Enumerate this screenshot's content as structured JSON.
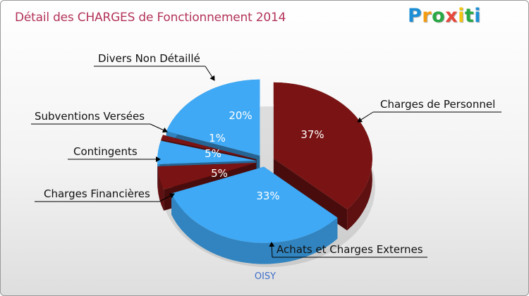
{
  "chart_data": {
    "type": "pie",
    "title": "Détail des CHARGES de Fonctionnement 2014",
    "categories": [
      "Charges de Personnel",
      "Achats et Charges Externes",
      "Charges Financières",
      "Contingents",
      "Subventions Versées",
      "Divers Non Détaillé"
    ],
    "values": [
      37,
      33,
      5,
      5,
      1,
      20
    ],
    "value_labels": [
      "37%",
      "33%",
      "5%",
      "5%",
      "1%",
      "20%"
    ],
    "xlabel": "OISY",
    "colors": [
      "#7a1414",
      "#3fa9f5",
      "#7a1414",
      "#3fa9f5",
      "#7a1414",
      "#3fa9f5"
    ],
    "legend": "labels-outside"
  },
  "brand": {
    "logo_letters": [
      "P",
      "r",
      "o",
      "x",
      "i",
      "t",
      "i"
    ],
    "logo_colors": [
      "#1e8fd6",
      "#f39c12",
      "#27a844",
      "#e8473b",
      "#f3c510",
      "#27a844",
      "#1e8fd6"
    ]
  }
}
